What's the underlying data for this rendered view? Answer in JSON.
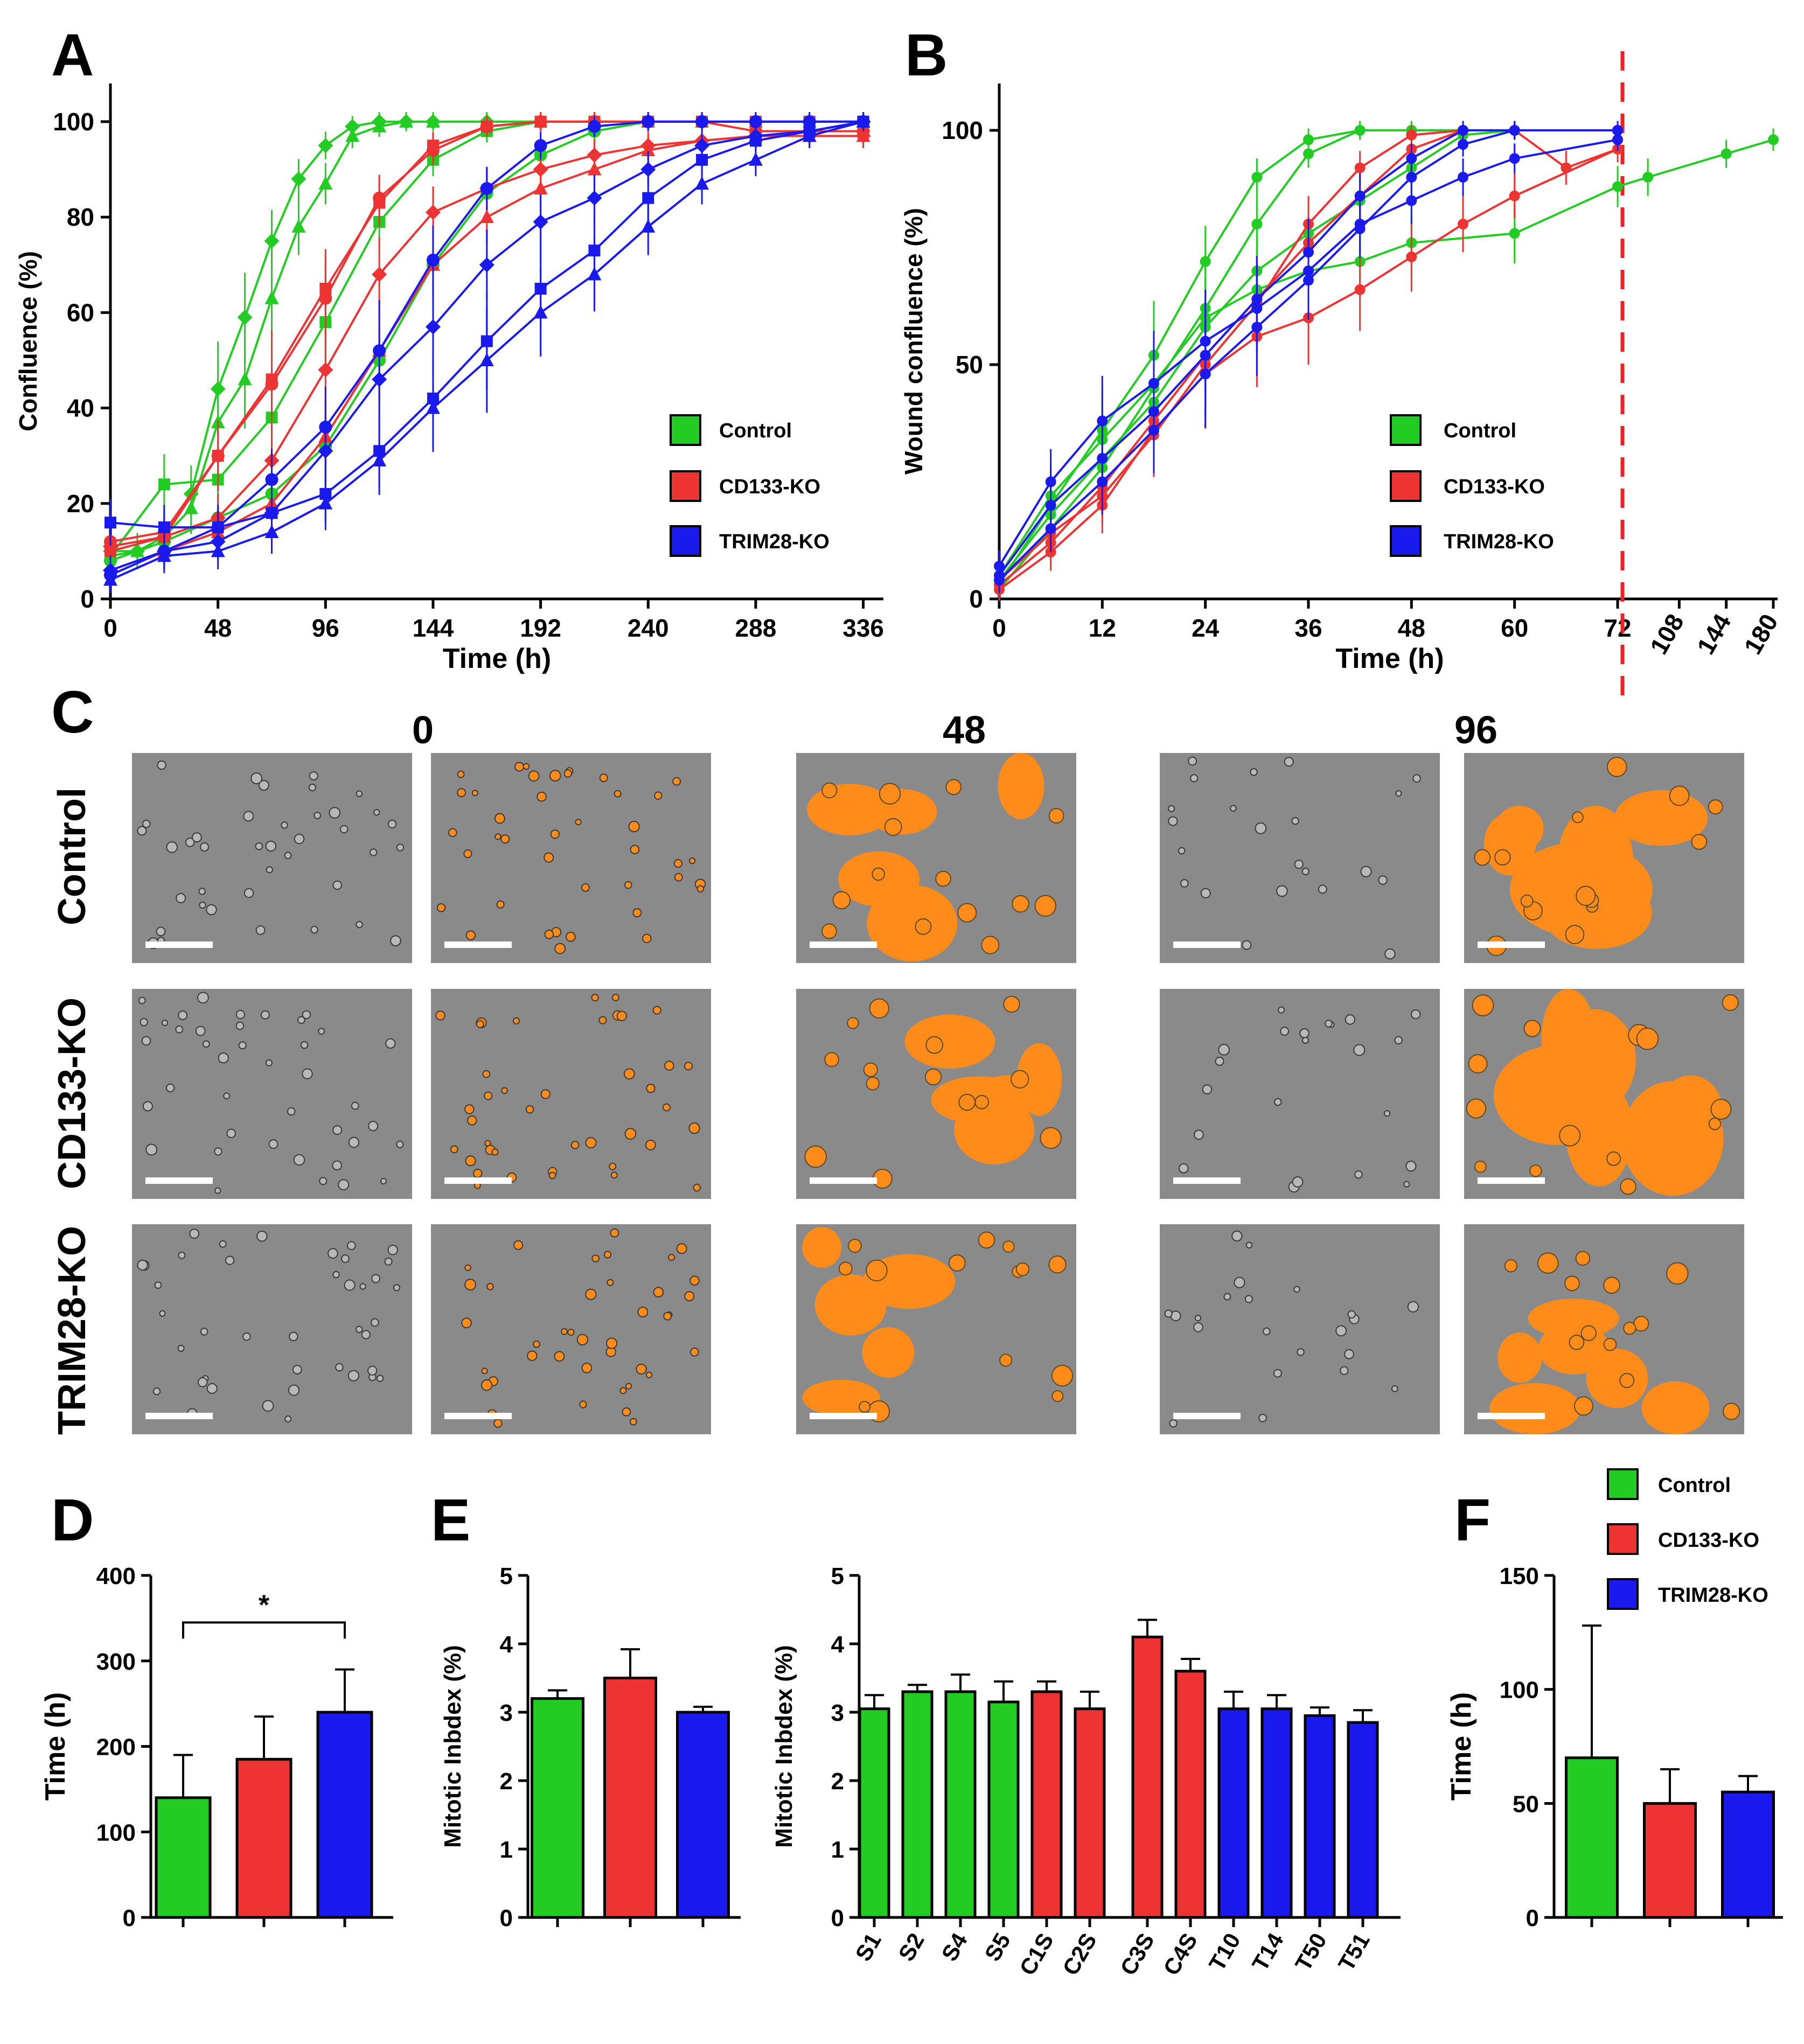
{
  "colors": {
    "control": "#22cc22",
    "cd133": "#ee3333",
    "trim28": "#1a1aee",
    "orange": "#ff8c1a",
    "gray": "#8a8a8a"
  },
  "legend": {
    "control": "Control",
    "cd133": "CD133-KO",
    "trim28": "TRIM28-KO"
  },
  "panel_letters": {
    "a": "A",
    "b": "B",
    "c": "C",
    "d": "D",
    "e": "E",
    "f": "F"
  },
  "panel_c": {
    "columns": [
      "0",
      "48",
      "96"
    ],
    "rows": [
      "Control",
      "CD133-KO",
      "TRIM28-KO"
    ]
  },
  "chart_data": [
    {
      "id": "A",
      "type": "line",
      "xlabel": "Time  (h)",
      "ylabel": "Confluence (%)",
      "xlim": [
        0,
        345
      ],
      "ylim": [
        0,
        108
      ],
      "xticks": [
        0,
        48,
        96,
        144,
        192,
        240,
        288,
        336
      ],
      "yticks": [
        0,
        20,
        40,
        60,
        80,
        100
      ],
      "series": [
        {
          "group": "control",
          "marker": "diamond",
          "x": [
            0,
            12,
            24,
            36,
            48,
            60,
            72,
            84,
            96,
            108,
            120,
            132,
            144,
            168,
            192,
            216,
            240,
            264,
            288,
            312,
            336
          ],
          "y": [
            10,
            10,
            13,
            22,
            44,
            59,
            75,
            88,
            95,
            99,
            100,
            100,
            100,
            100,
            100,
            100,
            100,
            100,
            100,
            100,
            100
          ]
        },
        {
          "group": "control",
          "marker": "triangle",
          "x": [
            0,
            12,
            24,
            36,
            48,
            60,
            72,
            84,
            96,
            108,
            120,
            132,
            144,
            168,
            192,
            216,
            240,
            264,
            288,
            312,
            336
          ],
          "y": [
            9,
            10,
            13,
            19,
            37,
            46,
            63,
            78,
            87,
            97,
            99,
            100,
            100,
            100,
            100,
            100,
            100,
            100,
            100,
            100,
            100
          ]
        },
        {
          "group": "control",
          "marker": "square",
          "x": [
            0,
            24,
            48,
            72,
            96,
            120,
            144,
            168,
            192,
            216,
            240,
            264,
            288,
            312,
            336
          ],
          "y": [
            9,
            24,
            25,
            38,
            58,
            79,
            92,
            98,
            100,
            100,
            100,
            100,
            100,
            100,
            100
          ]
        },
        {
          "group": "control",
          "marker": "circle",
          "x": [
            0,
            24,
            48,
            72,
            96,
            120,
            144,
            168,
            192,
            216,
            240,
            264,
            288,
            312,
            336
          ],
          "y": [
            8,
            12,
            17,
            22,
            32,
            50,
            70,
            85,
            93,
            98,
            100,
            100,
            100,
            100,
            100
          ]
        },
        {
          "group": "cd133",
          "marker": "square",
          "x": [
            0,
            24,
            48,
            72,
            96,
            120,
            144,
            168,
            192,
            216,
            240,
            264,
            288,
            312,
            336
          ],
          "y": [
            10,
            13,
            30,
            46,
            65,
            83,
            95,
            99,
            100,
            100,
            100,
            100,
            100,
            100,
            100
          ]
        },
        {
          "group": "cd133",
          "marker": "circle",
          "x": [
            0,
            24,
            48,
            72,
            96,
            120,
            144,
            168,
            192,
            216,
            240,
            264,
            288,
            312,
            336
          ],
          "y": [
            12,
            14,
            30,
            45,
            63,
            84,
            94,
            99,
            100,
            100,
            100,
            100,
            98,
            98,
            98
          ]
        },
        {
          "group": "cd133",
          "marker": "diamond",
          "x": [
            0,
            24,
            48,
            72,
            96,
            120,
            144,
            168,
            192,
            216,
            240,
            264,
            288,
            312,
            336
          ],
          "y": [
            11,
            13,
            17,
            29,
            48,
            68,
            81,
            86,
            90,
            93,
            95,
            96,
            97,
            97,
            97
          ]
        },
        {
          "group": "cd133",
          "marker": "triangle",
          "x": [
            0,
            24,
            48,
            72,
            96,
            120,
            144,
            168,
            192,
            216,
            240,
            264,
            288,
            312,
            336
          ],
          "y": [
            6,
            10,
            14,
            20,
            34,
            52,
            70,
            80,
            86,
            90,
            94,
            96,
            97,
            97,
            97
          ]
        },
        {
          "group": "trim28",
          "marker": "square",
          "x": [
            0,
            24,
            48,
            72,
            96,
            120,
            144,
            168,
            192,
            216,
            240,
            264,
            288,
            312,
            336
          ],
          "y": [
            16,
            15,
            15,
            18,
            22,
            31,
            42,
            54,
            65,
            73,
            84,
            92,
            96,
            98,
            100
          ]
        },
        {
          "group": "trim28",
          "marker": "circle",
          "x": [
            0,
            24,
            48,
            72,
            96,
            120,
            144,
            168,
            192,
            216,
            240,
            264,
            288,
            312,
            336
          ],
          "y": [
            5,
            10,
            15,
            25,
            36,
            52,
            71,
            86,
            95,
            99,
            100,
            100,
            100,
            100,
            100
          ]
        },
        {
          "group": "trim28",
          "marker": "diamond",
          "x": [
            0,
            24,
            48,
            72,
            96,
            120,
            144,
            168,
            192,
            216,
            240,
            264,
            288,
            312,
            336
          ],
          "y": [
            6,
            10,
            12,
            18,
            31,
            46,
            57,
            70,
            79,
            84,
            90,
            95,
            97,
            98,
            100
          ]
        },
        {
          "group": "trim28",
          "marker": "triangle",
          "x": [
            0,
            24,
            48,
            72,
            96,
            120,
            144,
            168,
            192,
            216,
            240,
            264,
            288,
            312,
            336
          ],
          "y": [
            4,
            9,
            10,
            14,
            20,
            29,
            40,
            50,
            60,
            68,
            78,
            87,
            92,
            97,
            100
          ]
        }
      ]
    },
    {
      "id": "B",
      "type": "line",
      "xlabel": "Time  (h)",
      "ylabel": "Wound confluence (%)",
      "ylim": [
        0,
        110
      ],
      "xticks": [
        "0",
        "12",
        "24",
        "36",
        "48",
        "60",
        "72",
        "108",
        "144",
        "180"
      ],
      "yticks": [
        0,
        50,
        100
      ],
      "series": [
        {
          "group": "control",
          "x": [
            0,
            6,
            12,
            18,
            24,
            30,
            36,
            42,
            48,
            54,
            60,
            72
          ],
          "y": [
            3,
            20,
            36,
            52,
            72,
            90,
            98,
            100,
            100,
            100,
            100,
            100
          ]
        },
        {
          "group": "control",
          "x": [
            0,
            6,
            12,
            18,
            24,
            30,
            36,
            42,
            48,
            54,
            60,
            72
          ],
          "y": [
            2,
            15,
            28,
            45,
            62,
            80,
            95,
            100,
            100,
            100,
            100,
            100
          ]
        },
        {
          "group": "control",
          "x": [
            0,
            6,
            12,
            18,
            24,
            30,
            36,
            42,
            48,
            54,
            60,
            72
          ],
          "y": [
            4,
            18,
            30,
            42,
            58,
            70,
            78,
            85,
            92,
            99,
            100,
            100
          ]
        },
        {
          "group": "control",
          "x": [
            0,
            6,
            12,
            18,
            24,
            30,
            36,
            42,
            48,
            60,
            72,
            84,
            144,
            180
          ],
          "y": [
            5,
            22,
            34,
            46,
            60,
            66,
            70,
            72,
            76,
            78,
            88,
            90,
            95,
            98
          ]
        },
        {
          "group": "cd133",
          "x": [
            0,
            6,
            12,
            18,
            24,
            30,
            36,
            42,
            48,
            54,
            60,
            72
          ],
          "y": [
            2,
            10,
            20,
            36,
            48,
            56,
            60,
            66,
            73,
            80,
            86,
            96
          ]
        },
        {
          "group": "cd133",
          "x": [
            0,
            6,
            12,
            18,
            24,
            30,
            36,
            42,
            48,
            54,
            60,
            72
          ],
          "y": [
            3,
            12,
            24,
            38,
            52,
            64,
            76,
            86,
            96,
            100,
            100,
            100
          ]
        },
        {
          "group": "cd133",
          "x": [
            0,
            6,
            12,
            18,
            24,
            30,
            36,
            42,
            48,
            54,
            60,
            66,
            72
          ],
          "y": [
            4,
            14,
            22,
            35,
            50,
            63,
            80,
            92,
            99,
            100,
            100,
            92,
            96
          ]
        },
        {
          "group": "trim28",
          "x": [
            0,
            6,
            12,
            18,
            24,
            30,
            36,
            42,
            48,
            54,
            60,
            72
          ],
          "y": [
            7,
            25,
            38,
            46,
            55,
            62,
            70,
            80,
            85,
            90,
            94,
            98
          ]
        },
        {
          "group": "trim28",
          "x": [
            0,
            6,
            12,
            18,
            24,
            30,
            36,
            42,
            48,
            54,
            60,
            72
          ],
          "y": [
            5,
            20,
            30,
            40,
            52,
            64,
            74,
            86,
            94,
            100,
            100,
            100
          ]
        },
        {
          "group": "trim28",
          "x": [
            0,
            6,
            12,
            18,
            24,
            30,
            36,
            42,
            48,
            54,
            60,
            72
          ],
          "y": [
            4,
            15,
            25,
            36,
            48,
            58,
            68,
            79,
            90,
            97,
            100,
            100
          ]
        }
      ]
    },
    {
      "id": "D",
      "type": "bar",
      "ylabel": "Time  (h)",
      "ylim": [
        0,
        400
      ],
      "yticks": [
        0,
        100,
        200,
        300,
        400
      ],
      "categories": [
        "Control",
        "CD133-KO",
        "TRIM28-KO"
      ],
      "values": [
        140,
        185,
        240
      ],
      "errors": [
        50,
        50,
        50
      ],
      "annotation": "*"
    },
    {
      "id": "E1",
      "type": "bar",
      "ylabel": "Mitotic Inbdex (%)",
      "ylim": [
        0,
        5
      ],
      "yticks": [
        0,
        1,
        2,
        3,
        4,
        5
      ],
      "categories": [
        "Control",
        "CD133-KO",
        "TRIM28-KO"
      ],
      "values": [
        3.2,
        3.5,
        3.0
      ],
      "errors": [
        0.12,
        0.42,
        0.08
      ]
    },
    {
      "id": "E2",
      "type": "bar",
      "ylabel": "Mitotic Inbdex (%)",
      "ylim": [
        0,
        5
      ],
      "yticks": [
        0,
        1,
        2,
        3,
        4,
        5
      ],
      "categories": [
        "S1",
        "S2",
        "S4",
        "S5",
        "C1S",
        "C2S",
        "C3S",
        "C4S",
        "T10",
        "T14",
        "T50",
        "T51"
      ],
      "groups": [
        "control",
        "control",
        "control",
        "control",
        "cd133",
        "cd133",
        "cd133",
        "cd133",
        "trim28",
        "trim28",
        "trim28",
        "trim28"
      ],
      "values": [
        3.05,
        3.3,
        3.3,
        3.15,
        3.3,
        3.05,
        4.1,
        3.6,
        3.05,
        3.05,
        2.95,
        2.85
      ],
      "errors": [
        0.2,
        0.1,
        0.25,
        0.3,
        0.15,
        0.25,
        0.25,
        0.18,
        0.25,
        0.2,
        0.12,
        0.18
      ]
    },
    {
      "id": "F",
      "type": "bar",
      "ylabel": "Time  (h)",
      "ylim": [
        0,
        150
      ],
      "yticks": [
        0,
        50,
        100,
        150
      ],
      "categories": [
        "Control",
        "CD133-KO",
        "TRIM28-KO"
      ],
      "values": [
        70,
        50,
        55
      ],
      "errors": [
        58,
        15,
        7
      ]
    }
  ]
}
